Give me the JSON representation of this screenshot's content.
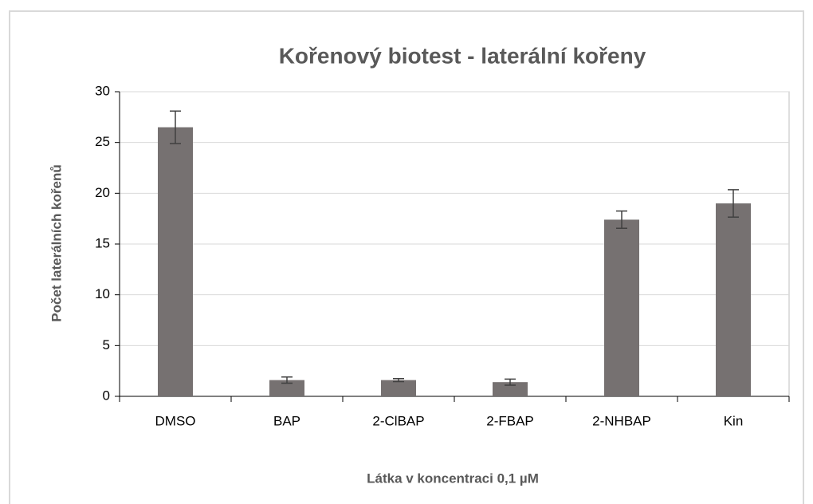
{
  "chart_data": {
    "type": "bar",
    "title": "Kořenový biotest - laterální kořeny",
    "xlabel": "Látka v koncentraci 0,1 µM",
    "ylabel": "Počet laterálních kořenů",
    "categories": [
      "DMSO",
      "BAP",
      "2-ClBAP",
      "2-FBAP",
      "2-NHBAP",
      "Kin"
    ],
    "values": [
      26.5,
      1.6,
      1.6,
      1.4,
      17.4,
      19.0
    ],
    "errors": [
      1.6,
      0.3,
      0.15,
      0.3,
      0.85,
      1.35
    ],
    "color": "#767171",
    "ylim": [
      0,
      30
    ],
    "yticks": [
      0,
      5,
      10,
      15,
      20,
      25,
      30
    ],
    "grid": true
  }
}
